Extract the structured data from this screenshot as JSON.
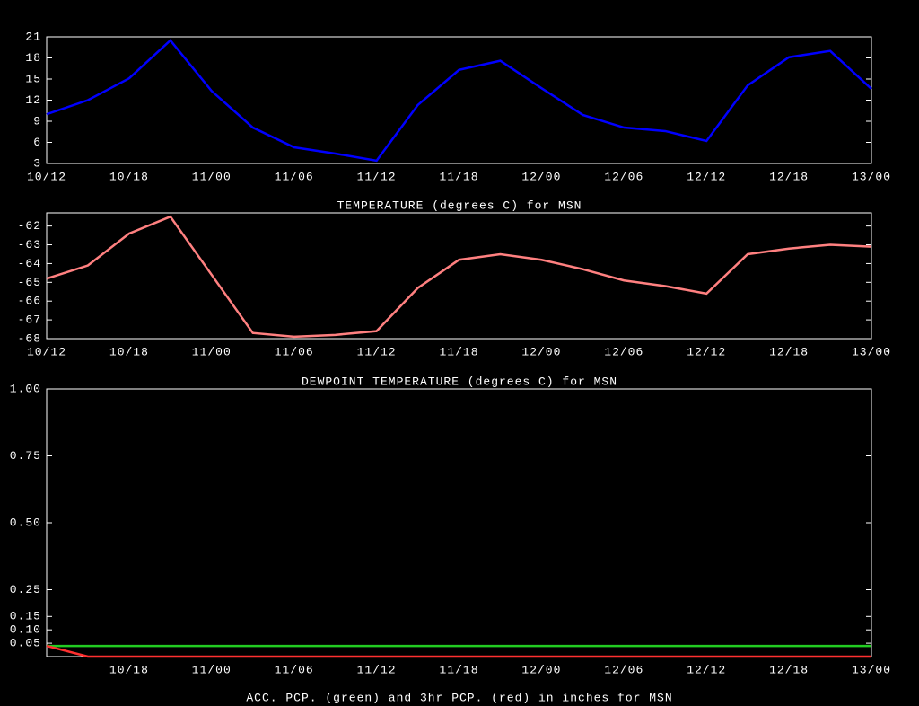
{
  "chart_data": [
    {
      "type": "line",
      "title": "TEMPERATURE (degrees C) for MSN",
      "categories": [
        "10/12",
        null,
        "10/18",
        null,
        "11/00",
        null,
        "11/06",
        null,
        "11/12",
        null,
        "11/18",
        null,
        "12/00",
        null,
        "12/06",
        null,
        "12/12",
        null,
        "12/18",
        null,
        "13/00"
      ],
      "series": [
        {
          "color": "#0000ff",
          "values": [
            10.0,
            12.0,
            15.1,
            20.5,
            13.3,
            8.1,
            5.3,
            4.4,
            3.4,
            11.3,
            16.3,
            17.6,
            13.7,
            9.9,
            8.1,
            7.6,
            6.2,
            14.1,
            18.1,
            19.0,
            13.6
          ]
        }
      ],
      "ylim": [
        3,
        21
      ],
      "yticks": [
        3,
        6,
        9,
        12,
        15,
        18,
        21
      ]
    },
    {
      "type": "line",
      "title": "DEWPOINT TEMPERATURE (degrees C) for MSN",
      "categories": [
        "10/12",
        null,
        "10/18",
        null,
        "11/00",
        null,
        "11/06",
        null,
        "11/12",
        null,
        "11/18",
        null,
        "12/00",
        null,
        "12/06",
        null,
        "12/12",
        null,
        "12/18",
        null,
        "13/00"
      ],
      "series": [
        {
          "color": "#ff8080",
          "values": [
            -64.8,
            -64.1,
            -62.4,
            -61.5,
            -64.6,
            -67.7,
            -67.9,
            -67.8,
            -67.6,
            -65.3,
            -63.8,
            -63.5,
            -63.8,
            -64.3,
            -64.9,
            -65.2,
            -65.6,
            -63.5,
            -63.2,
            -63.0,
            -63.1
          ]
        }
      ],
      "ylim": [
        -68,
        -61.3
      ],
      "yticks": [
        -68,
        -67,
        -66,
        -65,
        -64,
        -63,
        -62
      ]
    },
    {
      "type": "line",
      "title": "ACC. PCP. (green) and 3hr PCP. (red) in inches for MSN",
      "categories": [
        null,
        null,
        "10/18",
        null,
        "11/00",
        null,
        "11/06",
        null,
        "11/12",
        null,
        "11/18",
        null,
        "12/00",
        null,
        "12/06",
        null,
        "12/12",
        null,
        "12/18",
        null,
        "13/00"
      ],
      "series": [
        {
          "color": "#22cc22",
          "values": [
            0.04,
            0.04,
            0.04,
            0.04,
            0.04,
            0.04,
            0.04,
            0.04,
            0.04,
            0.04,
            0.04,
            0.04,
            0.04,
            0.04,
            0.04,
            0.04,
            0.04,
            0.04,
            0.04,
            0.04,
            0.04
          ]
        },
        {
          "color": "#ff3030",
          "values": [
            0.04,
            0,
            0,
            0,
            0,
            0,
            0,
            0,
            0,
            0,
            0,
            0,
            0,
            0,
            0,
            0,
            0,
            0,
            0,
            0,
            0
          ]
        }
      ],
      "ylim": [
        0,
        1
      ],
      "yticks": [
        0.05,
        {
          "value": 0.1,
          "label": "0.10"
        },
        0.15,
        0.25,
        {
          "value": 0.5,
          "label": "0.50"
        },
        0.75,
        {
          "value": 1,
          "label": "1.00"
        }
      ]
    }
  ]
}
